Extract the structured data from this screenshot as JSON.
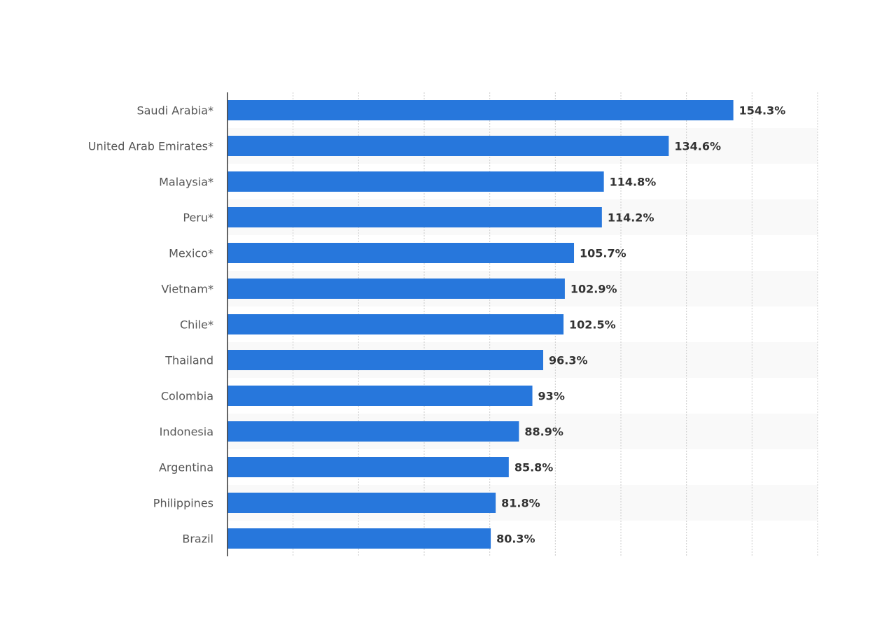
{
  "chart_data": {
    "type": "bar",
    "orientation": "horizontal",
    "categories": [
      "Saudi Arabia*",
      "United Arab Emirates*",
      "Malaysia*",
      "Peru*",
      "Mexico*",
      "Vietnam*",
      "Chile*",
      "Thailand",
      "Colombia",
      "Indonesia",
      "Argentina",
      "Philippines",
      "Brazil"
    ],
    "values": [
      154.3,
      134.6,
      114.8,
      114.2,
      105.7,
      102.9,
      102.5,
      96.3,
      93,
      88.9,
      85.8,
      81.8,
      80.3
    ],
    "data_labels": [
      "154.3%",
      "134.6%",
      "114.8%",
      "114.2%",
      "105.7%",
      "102.9%",
      "102.5%",
      "96.3%",
      "93%",
      "88.9%",
      "85.8%",
      "81.8%",
      "80.3%"
    ],
    "xlim": [
      0,
      180
    ],
    "grid_step": 20,
    "grid": true,
    "bar_color": "#2777dc",
    "stripe_color": "#f9f9f9",
    "title": "",
    "xlabel": "",
    "ylabel": ""
  }
}
